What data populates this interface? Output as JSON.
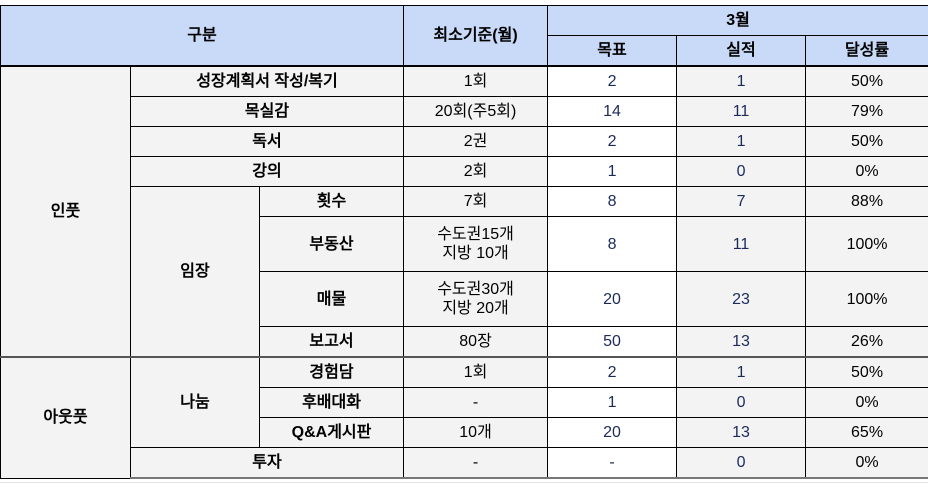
{
  "header": {
    "category": "구분",
    "minimum": "최소기준(월)",
    "month": "3월",
    "goal": "목표",
    "actual": "실적",
    "rate": "달성률"
  },
  "groups": {
    "input": "인풋",
    "output": "아웃풋",
    "imjang": "임장",
    "sharing": "나눔"
  },
  "rows": [
    {
      "item": "성장계획서 작성/복기",
      "min": "1회",
      "goal": "2",
      "actual": "1",
      "rate": "50%"
    },
    {
      "item": "목실감",
      "min": "20회(주5회)",
      "goal": "14",
      "actual": "11",
      "rate": "79%"
    },
    {
      "item": "독서",
      "min": "2권",
      "goal": "2",
      "actual": "1",
      "rate": "50%"
    },
    {
      "item": "강의",
      "min": "2회",
      "goal": "1",
      "actual": "0",
      "rate": "0%"
    },
    {
      "item": "횟수",
      "min": "7회",
      "goal": "8",
      "actual": "7",
      "rate": "88%"
    },
    {
      "item": "부동산",
      "min": "수도권15개\n지방 10개",
      "goal": "8",
      "actual": "11",
      "rate": "100%"
    },
    {
      "item": "매물",
      "min": "수도권30개\n지방 20개",
      "goal": "20",
      "actual": "23",
      "rate": "100%"
    },
    {
      "item": "보고서",
      "min": "80장",
      "goal": "50",
      "actual": "13",
      "rate": "26%"
    },
    {
      "item": "경험담",
      "min": "1회",
      "goal": "2",
      "actual": "1",
      "rate": "50%"
    },
    {
      "item": "후배대화",
      "min": "-",
      "goal": "1",
      "actual": "0",
      "rate": "0%"
    },
    {
      "item": "Q&A게시판",
      "min": "10개",
      "goal": "20",
      "actual": "13",
      "rate": "65%"
    },
    {
      "item": "투자",
      "min": "-",
      "goal": "-",
      "actual": "0",
      "rate": "0%"
    }
  ],
  "colors": {
    "header_bg": "#c9daf8",
    "cell_bg": "#f3f3f3",
    "goal_bg": "#ffffff",
    "number_text": "#1c2a5a"
  }
}
